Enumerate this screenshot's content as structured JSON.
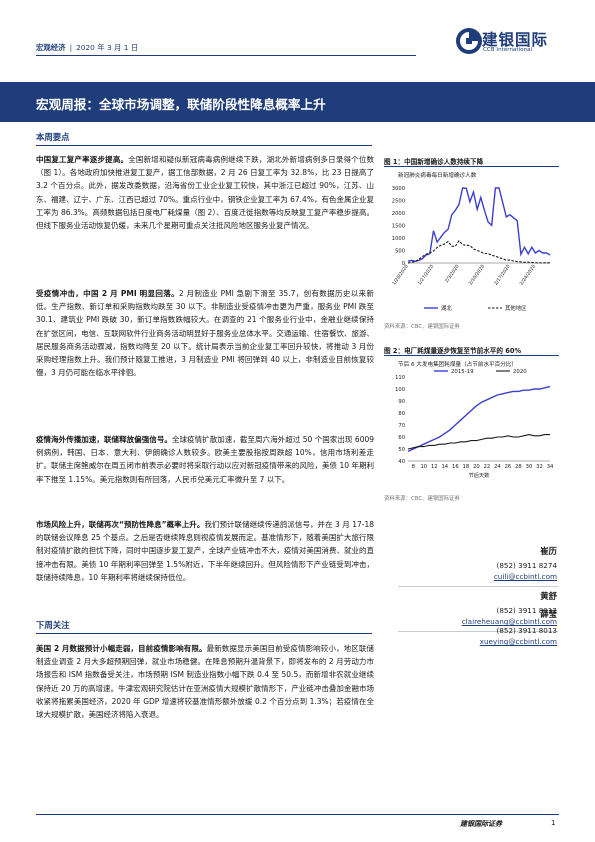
{
  "header": {
    "category": "宏观经济",
    "date": "2020 年 3 月 1 日",
    "logo_cn": "建银国际",
    "logo_en": "CCB International"
  },
  "banner": {
    "prefix": "宏观周报：",
    "title": "全球市场调整，联储阶段性降息概率上升"
  },
  "sections": {
    "summary_heading": "本周要点",
    "next_heading": "下周关注"
  },
  "paragraphs": [
    {
      "lead": "中国复工复产率逐步提高。",
      "body": "全国新增和疑似新冠病毒病例继续下跌，湖北外新增病例多日录得个位数（图 1）。各地政府加快推进复工复产，据工信部数据，2 月 26 日复工率为 32.8%，比 23 日提高了 3.2 个百分点。此外，据发改委数据，沿海省份工业企业复工较快，其中浙江已超过 90%，江苏、山东、福建、辽宁、广东、江西已超过 70%。重点行业中，钢铁企业复工率为 67.4%，有色金属企业复工率为 86.3%。高频数据包括日度电厂耗煤量（图 2）、百度迁徙指数等均反映复工复产率稳步提高。但线下服务业活动恢复仍缓，未来几个星期可重点关注抵风险地区服务业复产情况。"
    },
    {
      "lead": "受疫情冲击，中国 2 月 PMI 明显回落。",
      "body": "2 月制造业 PMI 急剧下滑至 35.7，创有数据历史以来新低。生产指数、新订单和采购指数均跌至 30 以下。非制造业受疫情冲击更为严重，服务业 PMI 跌至 30.1、建筑业 PMI 跌破 30，新订单指数跌幅较大。在调查的 21 个服务业行业中，金融业继续保持在扩张区间，电信、互联网软件行业商务活动明显好于服务业总体水平。交通运输、住宿餐饮、旅游、居民服务商务活动骤减，指数均降至 20 以下。统计局表示当前企业复工率回升较快，将推动 3 月份采购经理指数上升。我们预计随复工推进，3 月制造业 PMI 将回弹到 40 以上，非制造业目前恢复较慢，3 月仍可能在临水平徘徊。"
    },
    {
      "lead": "疫情海外传播加速，联储释放偏强信号。",
      "body": "全球疫情扩散加速，截至周六海外超过 50 个国家出现 6009 例病例，韩国、日本、意大利、伊朗确诊人数较多。欧美主要股指按周跌超 10%，信用市场利差走扩。联储主席鲍威尔在周五闭市前表示必要时将采取行动以应对新冠疫情带来的风险，美债 10 年期利率下推至 1.15%。美元指数则有所回落，人民币兑美元汇率微升至 7 以下。"
    },
    {
      "lead": "市场风险上升，联储再次“预防性降息”概率上升。",
      "body": "我们预计联储继续传递鸽派信号，并在 3 月 17-18 的联储会议降息 25 个基点。之后是否继续降息则视疫情发展而定。基准情形下，随着美国扩大旅行限制对疫情扩散的担忧下降，同时中国逐步复工复产，全球产业链冲击不大，疫情对美国消费、就业的直接冲击有限。美债 10 年期利率回弹至 1.5%附近，下半年继续回升。但风险情形下产业链受到冲击，联储持续降息，10 年期利率将继续保持低位。"
    },
    {
      "lead": "美国 2 月数据预计小幅走弱，目前疫情影响有限。",
      "body": "最新数据显示美国目前受疫情影响较小，地区联储制造业调查 2 月大多超预期回弹，就业市场稳健。在降息预期升温背景下，即将发布的 2 月劳动力市场报告和 ISM 指数备受关注，市场预期 ISM 制造业指数小幅下跌 0.4 至 50.5，而新增非农就业继续保持近 20 万的高增速。牛津宏观研究院估计在亚洲疫情大规模扩散情形下，产业链冲击叠加金融市场收紧将拖累美国经济，2020 年 GDP 增速将较基准情形额外放缓 0.2 个百分点到 1.3%；若疫情在全球大规模扩散，美国经济将陷入衰退。"
    }
  ],
  "figures": [
    {
      "caption": "图 1：中国新增确诊人数持续下降",
      "source": "资料来源：CBC、建银国际证券",
      "chart_title": "新冠肺炎病毒每日新增确诊人数"
    },
    {
      "caption": "图 2：电厂耗煤量逐步恢复至节前水平的 60%",
      "source": "资料来源：CBC、建银国际证券",
      "chart_title": "节后 6 大发电集团耗煤量（占节前水平百分比）",
      "xlabel": "节后天数"
    }
  ],
  "analysts": [
    {
      "name": "崔历",
      "phone": "(852) 3911 8274",
      "email": "cuili@ccbintl.com"
    },
    {
      "name": "黄舒",
      "phone": "(852) 3911 8012",
      "email": "claireheuang@ccbintl.com"
    },
    {
      "name": "薛莹",
      "phone": "(852) 3911 8013",
      "email": "xueying@ccbintl.com"
    }
  ],
  "footer": {
    "brand": "建银国际证券",
    "page": "1"
  },
  "colors": {
    "brand_blue": "#1f3d7a",
    "series_blue": "#3b3fd0",
    "series_black": "#1a1a1a"
  },
  "chart_data": [
    {
      "type": "line",
      "title": "新冠肺炎病毒每日新增确诊人数",
      "x": [
        "1/20/2020",
        "1/21/2020",
        "1/22/2020",
        "1/23/2020",
        "1/24/2020",
        "1/25/2020",
        "1/26/2020",
        "1/27/2020",
        "1/28/2020",
        "1/29/2020",
        "1/30/2020",
        "1/31/2020",
        "2/1/2020",
        "2/2/2020",
        "2/3/2020",
        "2/4/2020",
        "2/5/2020",
        "2/6/2020",
        "2/7/2020",
        "2/8/2020",
        "2/9/2020",
        "2/10/2020",
        "2/11/2020",
        "2/12/2020",
        "2/13/2020",
        "2/14/2020",
        "2/15/2020",
        "2/16/2020",
        "2/17/2020",
        "2/18/2020",
        "2/19/2020",
        "2/20/2020",
        "2/21/2020",
        "2/22/2020",
        "2/23/2020",
        "2/24/2020",
        "2/25/2020",
        "2/26/2020",
        "2/27/2020",
        "2/28/2020"
      ],
      "xticks": [
        "1/20/2020",
        "1/27/2020",
        "2/3/2020",
        "2/10/2020",
        "2/17/2020",
        "2/24/2020"
      ],
      "series": [
        {
          "name": "湖北",
          "values": [
            72,
            105,
            69,
            105,
            180,
            323,
            371,
            1291,
            840,
            1032,
            1220,
            1347,
            1921,
            2103,
            2345,
            3156,
            2987,
            2447,
            2841,
            2147,
            2618,
            2097,
            1638,
            1508,
            3000,
            4823,
            2420,
            1843,
            1933,
            1807,
            1693,
            349,
            631,
            366,
            630,
            398,
            499,
            401,
            409,
            318
          ]
        },
        {
          "name": "其他地区",
          "values": [
            5,
            30,
            62,
            154,
            264,
            357,
            401,
            480,
            620,
            708,
            762,
            860,
            672,
            670,
            890,
            731,
            707,
            696,
            558,
            509,
            444,
            381,
            377,
            312,
            267,
            221,
            166,
            115,
            115,
            79,
            56,
            45,
            28,
            31,
            18,
            11,
            7,
            5,
            9,
            9
          ]
        }
      ],
      "ylim": [
        0,
        3000
      ],
      "yticks": [
        0,
        500,
        1000,
        1500,
        2000,
        2500,
        3000
      ],
      "legend": "bottom"
    },
    {
      "type": "line",
      "title": "节后 6 大发电集团耗煤量（占节前水平百分比）",
      "xlabel": "节后天数",
      "x": [
        7,
        8,
        9,
        10,
        11,
        12,
        13,
        14,
        15,
        16,
        17,
        18,
        19,
        20,
        21,
        22,
        23,
        24,
        25,
        26,
        27,
        28,
        29,
        30,
        31,
        32,
        33,
        34
      ],
      "xticks": [
        8,
        10,
        12,
        14,
        16,
        18,
        20,
        22,
        24,
        26,
        28,
        30,
        32,
        34
      ],
      "series": [
        {
          "name": "2015-19",
          "values": [
            48,
            50,
            52,
            54,
            56,
            58,
            60,
            63,
            66,
            70,
            74,
            78,
            82,
            86,
            89,
            91,
            93,
            95,
            96,
            97,
            98,
            98,
            99,
            99,
            100,
            100,
            101,
            102
          ]
        },
        {
          "name": "2020",
          "values": [
            50,
            51,
            52,
            52,
            53,
            53,
            54,
            54,
            55,
            55,
            56,
            56,
            57,
            57,
            58,
            59,
            59,
            60,
            60,
            61,
            60,
            60,
            61,
            62,
            61,
            61,
            62,
            62
          ]
        }
      ],
      "ylim": [
        40,
        110
      ],
      "yticks": [
        40,
        50,
        60,
        70,
        80,
        90,
        100,
        110
      ],
      "legend": "top"
    }
  ]
}
